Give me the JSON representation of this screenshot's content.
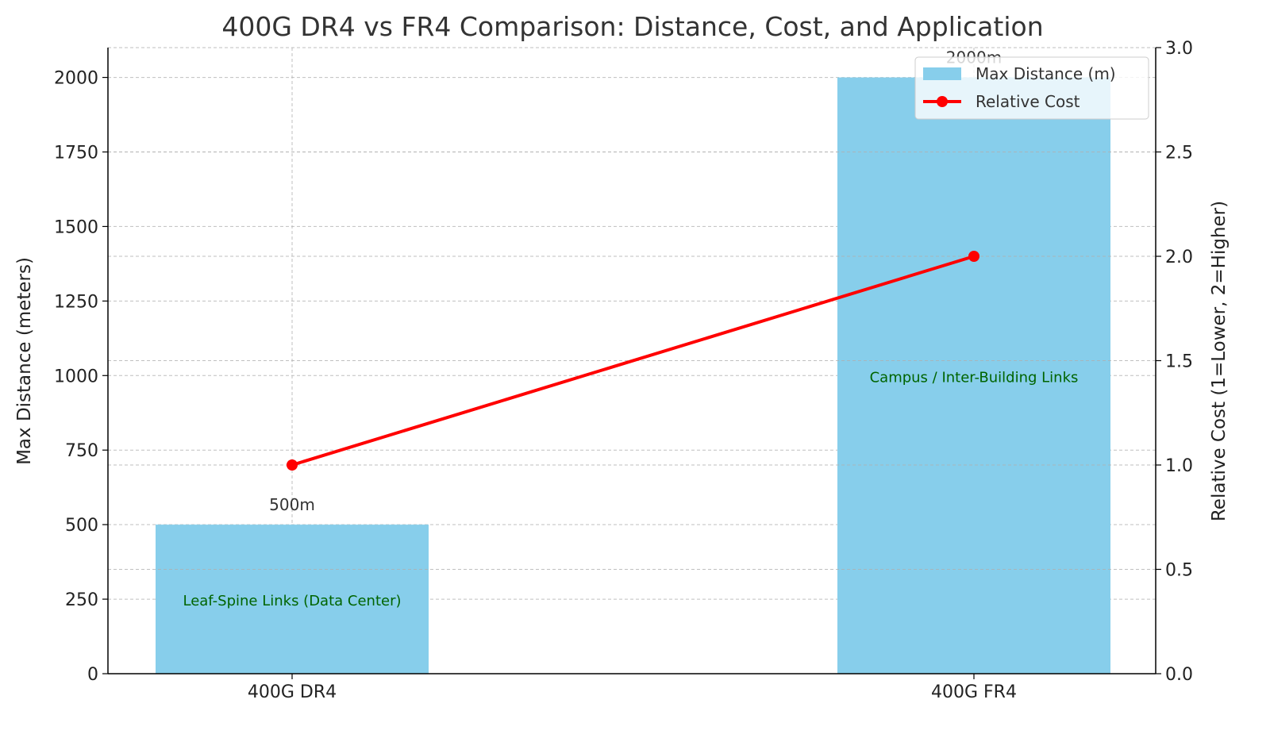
{
  "chart_data": {
    "type": "bar",
    "title": "400G DR4 vs FR4 Comparison: Distance, Cost, and Application",
    "categories": [
      "400G DR4",
      "400G FR4"
    ],
    "ylabel": "Max Distance (meters)",
    "y2label": "Relative Cost (1=Lower, 2=Higher)",
    "ylim": [
      0,
      2100
    ],
    "y2lim": [
      0,
      3.0
    ],
    "yticks": [
      0,
      250,
      500,
      750,
      1000,
      1250,
      1500,
      1750,
      2000
    ],
    "y2ticks": [
      "0.0",
      "0.5",
      "1.0",
      "1.5",
      "2.0",
      "2.5",
      "3.0"
    ],
    "grid": true,
    "legend_placement": "top-right",
    "series": [
      {
        "name": "Max Distance (m)",
        "type": "bar",
        "color": "#87CEEB",
        "values": [
          500,
          2000
        ],
        "labels": [
          "500m",
          "2000m"
        ]
      },
      {
        "name": "Relative Cost",
        "type": "line",
        "axis": "right",
        "color": "#FF0000",
        "values": [
          1,
          2
        ]
      }
    ],
    "annotations": {
      "color": "#006400",
      "texts": [
        "Leaf-Spine Links (Data Center)",
        "Campus / Inter-Building Links"
      ]
    }
  }
}
